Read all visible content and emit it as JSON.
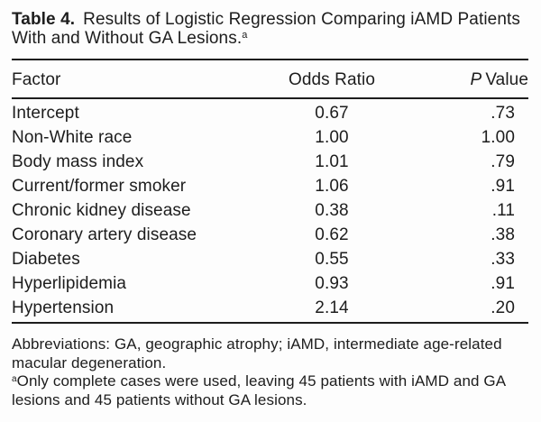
{
  "title": {
    "label": "Table 4.",
    "line1": "Results of Logistic Regression Comparing iAMD Patients",
    "line2": "With and Without GA Lesions.",
    "footnote_marker": "a"
  },
  "table": {
    "columns": {
      "factor": "Factor",
      "odds_ratio": "Odds Ratio",
      "p_value_italic": "P",
      "p_value_rest": "Value"
    },
    "rows": [
      {
        "factor": "Intercept",
        "odds_ratio": "0.67",
        "p_value": ".73"
      },
      {
        "factor": "Non-White race",
        "odds_ratio": "1.00",
        "p_value": "1.00"
      },
      {
        "factor": "Body mass index",
        "odds_ratio": "1.01",
        "p_value": ".79"
      },
      {
        "factor": "Current/former smoker",
        "odds_ratio": "1.06",
        "p_value": ".91"
      },
      {
        "factor": "Chronic kidney disease",
        "odds_ratio": "0.38",
        "p_value": ".11"
      },
      {
        "factor": "Coronary artery disease",
        "odds_ratio": "0.62",
        "p_value": ".38"
      },
      {
        "factor": "Diabetes",
        "odds_ratio": "0.55",
        "p_value": ".33"
      },
      {
        "factor": "Hyperlipidemia",
        "odds_ratio": "0.93",
        "p_value": ".91"
      },
      {
        "factor": "Hypertension",
        "odds_ratio": "2.14",
        "p_value": ".20"
      }
    ]
  },
  "footnotes": {
    "abbreviations_line1": "Abbreviations: GA, geographic atrophy; iAMD, intermediate age-related",
    "abbreviations_line2": "macular degeneration.",
    "note_a_marker": "a",
    "note_a_line1": "Only complete cases were used, leaving 45 patients with iAMD and GA",
    "note_a_line2": "lesions and 45 patients without GA lesions."
  },
  "colors": {
    "text": "#1d1d1d",
    "rule": "#1d1d1d",
    "background": "#fdfdfd"
  }
}
